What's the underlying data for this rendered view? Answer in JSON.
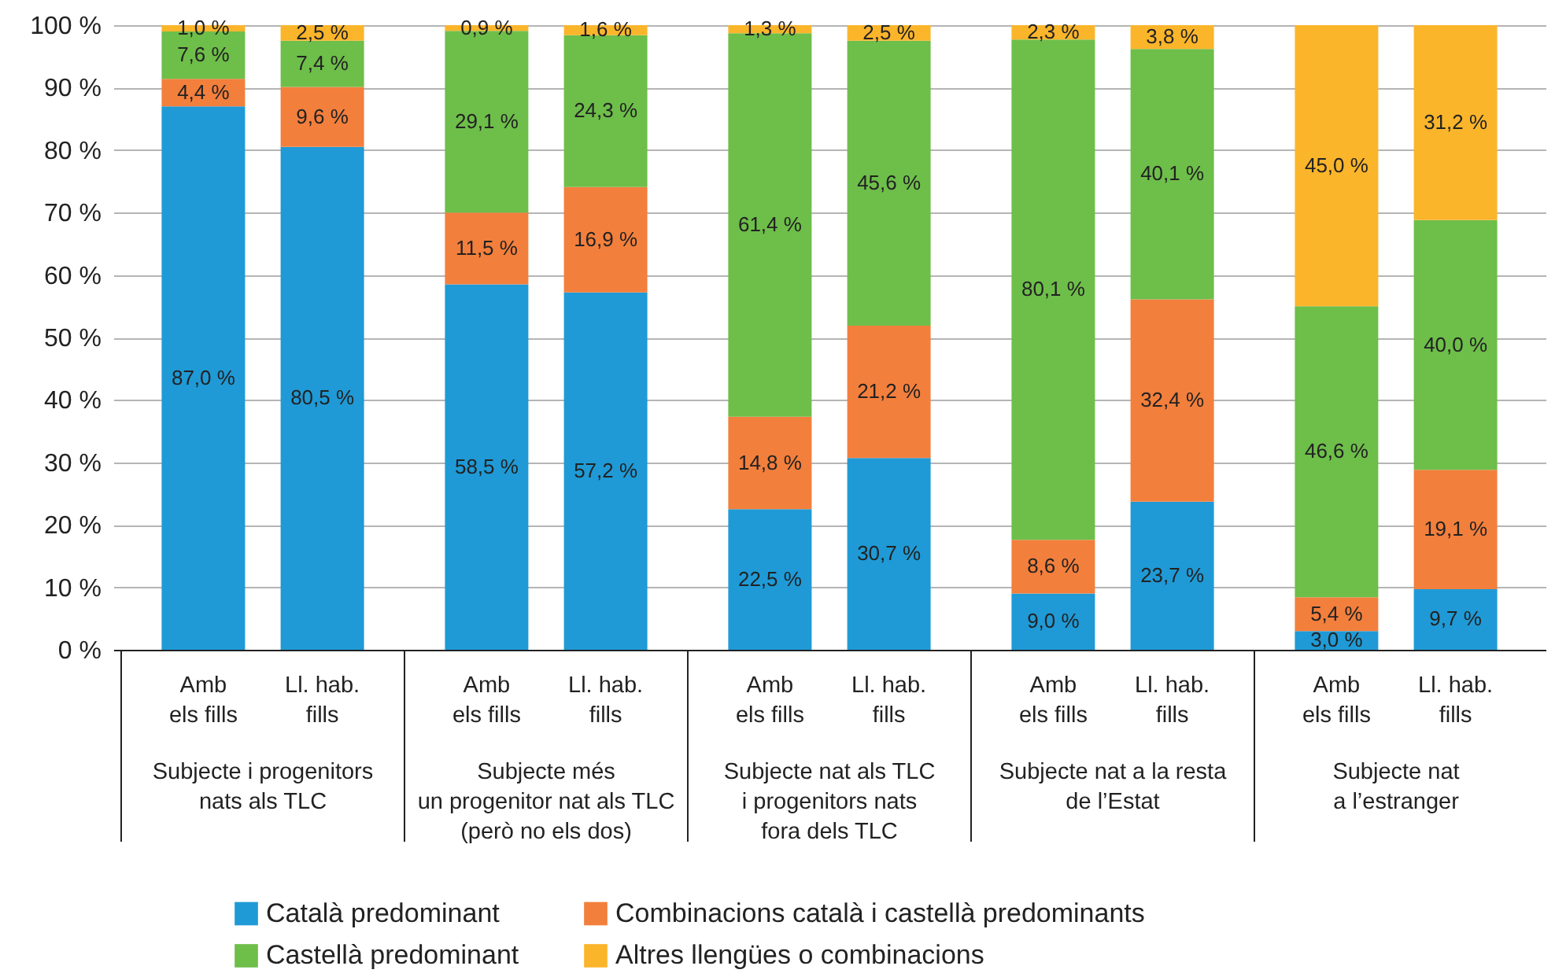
{
  "chart_data": {
    "type": "bar",
    "stacked": true,
    "categories": [
      "Amb\nels fills",
      "Ll. hab.\nfills",
      "Amb\nels fills",
      "Ll. hab.\nfills",
      "Amb\nels fills",
      "Ll. hab.\nfills",
      "Amb\nels fills",
      "Ll. hab.\nfills",
      "Amb\nels fills",
      "Ll. hab.\nfills"
    ],
    "annotations": [
      "Subjecte i progenitors\nnats als TLC",
      "Subjecte més\nun progenitor nat als TLC\n(però no els dos)",
      "Subjecte nat als TLC\ni progenitors nats\nfora dels TLC",
      "Subjecte nat a la resta\nde l’Estat",
      "Subjecte nat\na l’estranger"
    ],
    "series": [
      {
        "name": "Català predominant",
        "color": "#1f9ad6",
        "values": [
          87.0,
          80.5,
          58.5,
          57.2,
          22.5,
          30.7,
          9.0,
          23.7,
          3.0,
          9.7
        ],
        "value_labels": [
          "87,0 %",
          "80,5 %",
          "58,5 %",
          "57,2 %",
          "22,5 %",
          "30,7 %",
          "9,0 %",
          "23,7 %",
          "3,0 %",
          "9,7 %"
        ]
      },
      {
        "name": "Combinacions català i castellà predominants",
        "color": "#f37f3c",
        "values": [
          4.4,
          9.6,
          11.5,
          16.9,
          14.8,
          21.2,
          8.6,
          32.4,
          5.4,
          19.1
        ],
        "value_labels": [
          "4,4 %",
          "9,6 %",
          "11,5 %",
          "16,9 %",
          "14,8 %",
          "21,2 %",
          "8,6 %",
          "32,4 %",
          "5,4 %",
          "19,1 %"
        ]
      },
      {
        "name": "Castellà predominant",
        "color": "#6ebe4a",
        "values": [
          7.6,
          7.4,
          29.1,
          24.3,
          61.4,
          45.6,
          80.1,
          40.1,
          46.6,
          40.0
        ],
        "value_labels": [
          "7,6 %",
          "7,4 %",
          "29,1 %",
          "24,3 %",
          "61,4 %",
          "45,6 %",
          "80,1 %",
          "40,1 %",
          "46,6 %",
          "40,0 %"
        ]
      },
      {
        "name": "Altres llengües o combinacions",
        "color": "#fbb52b",
        "values": [
          1.0,
          2.5,
          0.9,
          1.6,
          1.3,
          2.5,
          2.3,
          3.8,
          45.0,
          31.2
        ],
        "value_labels": [
          "1,0 %",
          "2,5 %",
          "0,9 %",
          "1,6 %",
          "1,3 %",
          "2,5 %",
          "2,3 %",
          "3,8 %",
          "45,0 %",
          "31,2 %"
        ]
      }
    ],
    "ylim": [
      0,
      100
    ],
    "yticks": [
      {
        "value": 0,
        "label": "0 %"
      },
      {
        "value": 10,
        "label": "10 %"
      },
      {
        "value": 20,
        "label": "20 %"
      },
      {
        "value": 30,
        "label": "30 %"
      },
      {
        "value": 40,
        "label": "40 %"
      },
      {
        "value": 50,
        "label": "50 %"
      },
      {
        "value": 60,
        "label": "60 %"
      },
      {
        "value": 70,
        "label": "70 %"
      },
      {
        "value": 80,
        "label": "80 %"
      },
      {
        "value": 90,
        "label": "90 %"
      },
      {
        "value": 100,
        "label": "100 %"
      }
    ],
    "grid": "y",
    "legend": "bottom"
  }
}
